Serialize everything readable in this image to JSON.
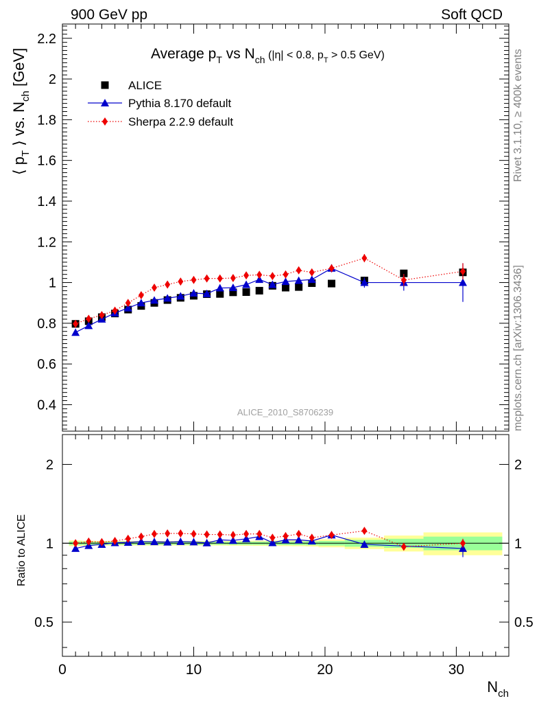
{
  "header": {
    "left": "900 GeV pp",
    "right": "Soft QCD"
  },
  "side_labels": {
    "rivet": "Rivet 3.1.10, ≥ 400k events",
    "mcplots": "mcplots.cern.ch [arXiv:1306.3436]"
  },
  "analysis_id": "ALICE_2010_S8706239",
  "colors": {
    "alice": "#000000",
    "pythia": "#0000cc",
    "sherpa": "#ee0000",
    "band_inner": "#99ff99",
    "band_outer": "#ffff99"
  },
  "chart_data": [
    {
      "type": "scatter",
      "title": "Average p_T vs N_ch (|η| < 0.8, p_T > 0.5 GeV)",
      "ylabel": "⟨ p_T ⟩ vs. N_ch [GeV]",
      "xlabel": "N_ch",
      "xlim": [
        0,
        34
      ],
      "ylim": [
        0.27,
        2.27
      ],
      "yticks": [
        0.4,
        0.6,
        0.8,
        1.0,
        1.2,
        1.4,
        1.6,
        1.8,
        2.0,
        2.2
      ],
      "ytick_labels": [
        "0.4",
        "0.6",
        "0.8",
        "1",
        "1.2",
        "1.4",
        "1.6",
        "1.8",
        "2",
        "2.2"
      ],
      "legend_position": "top-left",
      "series": [
        {
          "name": "ALICE",
          "marker": "square",
          "x": [
            1,
            2,
            3,
            4,
            5,
            6,
            7,
            8,
            9,
            10,
            11,
            12,
            13,
            14,
            15,
            16,
            17,
            18,
            19,
            20.5,
            23,
            26,
            30.5
          ],
          "y": [
            0.797,
            0.81,
            0.83,
            0.848,
            0.867,
            0.885,
            0.9,
            0.914,
            0.925,
            0.935,
            0.943,
            0.944,
            0.952,
            0.953,
            0.96,
            0.984,
            0.975,
            0.978,
            0.997,
            0.995,
            1.01,
            1.045,
            1.05
          ]
        },
        {
          "name": "Pythia 8.170 default",
          "marker": "triangle",
          "line": "solid",
          "x": [
            1,
            2,
            3,
            4,
            5,
            6,
            7,
            8,
            9,
            10,
            11,
            12,
            13,
            14,
            15,
            16,
            17,
            18,
            19,
            20.5,
            23,
            26,
            30.5
          ],
          "y": [
            0.755,
            0.788,
            0.82,
            0.85,
            0.875,
            0.9,
            0.913,
            0.923,
            0.933,
            0.948,
            0.945,
            0.973,
            0.975,
            0.99,
            1.015,
            0.99,
            1.005,
            1.01,
            1.015,
            1.07,
            1.0,
            1.0,
            1.0
          ],
          "yerr": [
            0.005,
            0.005,
            0.005,
            0.005,
            0.005,
            0.005,
            0.006,
            0.006,
            0.006,
            0.007,
            0.007,
            0.007,
            0.008,
            0.008,
            0.009,
            0.01,
            0.01,
            0.012,
            0.014,
            0.02,
            0.025,
            0.04,
            0.095
          ]
        },
        {
          "name": "Sherpa 2.2.9 default",
          "marker": "diamond",
          "line": "dotted",
          "x": [
            1,
            2,
            3,
            4,
            5,
            6,
            7,
            8,
            9,
            10,
            11,
            12,
            13,
            14,
            15,
            16,
            17,
            18,
            19,
            20.5,
            23,
            26,
            30.5
          ],
          "y": [
            0.797,
            0.822,
            0.84,
            0.862,
            0.9,
            0.938,
            0.975,
            0.99,
            1.005,
            1.013,
            1.02,
            1.02,
            1.022,
            1.035,
            1.038,
            1.032,
            1.04,
            1.06,
            1.05,
            1.07,
            1.12,
            1.012,
            1.055
          ],
          "yerr": [
            0.004,
            0.004,
            0.004,
            0.004,
            0.005,
            0.005,
            0.006,
            0.006,
            0.006,
            0.007,
            0.007,
            0.008,
            0.008,
            0.009,
            0.01,
            0.01,
            0.011,
            0.012,
            0.014,
            0.018,
            0.02,
            0.03,
            0.04
          ]
        }
      ]
    },
    {
      "type": "scatter",
      "ylabel": "Ratio to ALICE",
      "xlabel": "N_ch",
      "xlim": [
        0,
        34
      ],
      "ylim": [
        0.37,
        2.6
      ],
      "log_y": true,
      "yticks": [
        0.5,
        1,
        2
      ],
      "ytick_labels": [
        "0.5",
        "1",
        "2"
      ],
      "xticks": [
        0,
        10,
        20,
        30
      ],
      "xtick_labels": [
        "0",
        "10",
        "20",
        "30"
      ],
      "bands": {
        "x_edges": [
          0.5,
          1.5,
          2.5,
          3.5,
          4.5,
          5.5,
          6.5,
          7.5,
          8.5,
          9.5,
          10.5,
          11.5,
          12.5,
          13.5,
          14.5,
          15.5,
          16.5,
          17.5,
          18.5,
          19.5,
          21.5,
          24.5,
          27.5,
          33.5
        ],
        "inner": [
          0.015,
          0.014,
          0.013,
          0.013,
          0.013,
          0.013,
          0.013,
          0.013,
          0.013,
          0.013,
          0.013,
          0.013,
          0.013,
          0.014,
          0.014,
          0.015,
          0.015,
          0.016,
          0.017,
          0.02,
          0.03,
          0.04,
          0.06
        ],
        "outer": [
          0.025,
          0.022,
          0.02,
          0.02,
          0.02,
          0.02,
          0.02,
          0.02,
          0.02,
          0.02,
          0.02,
          0.02,
          0.021,
          0.022,
          0.023,
          0.024,
          0.025,
          0.026,
          0.028,
          0.035,
          0.05,
          0.07,
          0.1
        ]
      },
      "series": [
        {
          "name": "Pythia 8.170 default",
          "marker": "triangle",
          "line": "solid",
          "x": [
            1,
            2,
            3,
            4,
            5,
            6,
            7,
            8,
            9,
            10,
            11,
            12,
            13,
            14,
            15,
            16,
            17,
            18,
            19,
            20.5,
            23,
            30.5
          ],
          "y": [
            0.955,
            0.98,
            0.99,
            1.005,
            1.008,
            1.015,
            1.013,
            1.01,
            1.015,
            1.012,
            1.003,
            1.03,
            1.025,
            1.04,
            1.06,
            1.005,
            1.03,
            1.03,
            1.02,
            1.075,
            0.99,
            0.955
          ],
          "yerr": [
            0.006,
            0.006,
            0.006,
            0.006,
            0.006,
            0.006,
            0.007,
            0.007,
            0.007,
            0.008,
            0.008,
            0.008,
            0.009,
            0.009,
            0.01,
            0.011,
            0.011,
            0.013,
            0.015,
            0.02,
            0.025,
            0.07
          ]
        },
        {
          "name": "Sherpa 2.2.9 default",
          "marker": "diamond",
          "line": "dotted",
          "x": [
            1,
            2,
            3,
            4,
            5,
            6,
            7,
            8,
            9,
            10,
            11,
            12,
            13,
            14,
            15,
            16,
            17,
            18,
            19,
            20.5,
            23,
            26,
            30.5
          ],
          "y": [
            1.0,
            1.015,
            1.01,
            1.02,
            1.04,
            1.06,
            1.085,
            1.09,
            1.09,
            1.085,
            1.08,
            1.08,
            1.075,
            1.085,
            1.085,
            1.05,
            1.065,
            1.085,
            1.05,
            1.075,
            1.115,
            0.97,
            1.0
          ],
          "yerr": [
            0.005,
            0.005,
            0.005,
            0.005,
            0.006,
            0.006,
            0.007,
            0.007,
            0.007,
            0.008,
            0.008,
            0.008,
            0.009,
            0.009,
            0.01,
            0.011,
            0.011,
            0.013,
            0.015,
            0.02,
            0.02,
            0.03,
            0.04
          ]
        }
      ]
    }
  ]
}
